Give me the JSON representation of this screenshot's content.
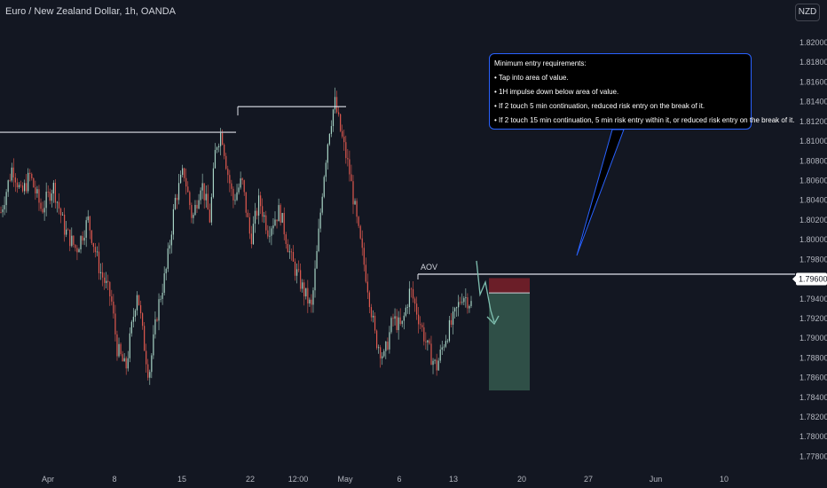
{
  "header": {
    "title": "Euro / New Zealand Dollar, 1h, OANDA",
    "currency": "NZD"
  },
  "chart_data": {
    "type": "candlestick",
    "title": "Euro / New Zealand Dollar, 1h, OANDA",
    "ylim": [
      1.7766,
      1.8218
    ],
    "y_ticks": [
      "1.82000",
      "1.81800",
      "1.81600",
      "1.81400",
      "1.81200",
      "1.81000",
      "1.80800",
      "1.80600",
      "1.80400",
      "1.80200",
      "1.80000",
      "1.79800",
      "1.79600",
      "1.79400",
      "1.79200",
      "1.79000",
      "1.78800",
      "1.78600",
      "1.78400",
      "1.78200",
      "1.78000",
      "1.77800"
    ],
    "x_ticks": [
      "Apr",
      "8",
      "15",
      "22",
      "12:00",
      "May",
      "6",
      "13",
      "20",
      "27",
      "Jun",
      "10"
    ],
    "current_price": "1.79600",
    "price_path": [
      [
        0.0,
        1.8028
      ],
      [
        0.02,
        1.8075
      ],
      [
        0.035,
        1.8045
      ],
      [
        0.05,
        1.8065
      ],
      [
        0.07,
        1.803
      ],
      [
        0.09,
        1.8055
      ],
      [
        0.11,
        1.801
      ],
      [
        0.13,
        1.799
      ],
      [
        0.15,
        1.802
      ],
      [
        0.17,
        1.797
      ],
      [
        0.19,
        1.794
      ],
      [
        0.2,
        1.789
      ],
      [
        0.215,
        1.7868
      ],
      [
        0.225,
        1.791
      ],
      [
        0.235,
        1.795
      ],
      [
        0.245,
        1.79
      ],
      [
        0.255,
        1.7862
      ],
      [
        0.27,
        1.793
      ],
      [
        0.285,
        1.797
      ],
      [
        0.3,
        1.804
      ],
      [
        0.315,
        1.807
      ],
      [
        0.33,
        1.802
      ],
      [
        0.345,
        1.806
      ],
      [
        0.36,
        1.802
      ],
      [
        0.37,
        1.8095
      ],
      [
        0.38,
        1.811
      ],
      [
        0.39,
        1.807
      ],
      [
        0.4,
        1.804
      ],
      [
        0.415,
        1.806
      ],
      [
        0.43,
        1.8
      ],
      [
        0.445,
        1.804
      ],
      [
        0.46,
        1.801
      ],
      [
        0.48,
        1.803
      ],
      [
        0.5,
        1.798
      ],
      [
        0.52,
        1.795
      ],
      [
        0.535,
        1.793
      ],
      [
        0.545,
        1.799
      ],
      [
        0.555,
        1.806
      ],
      [
        0.565,
        1.811
      ],
      [
        0.575,
        1.814
      ],
      [
        0.585,
        1.811
      ],
      [
        0.6,
        1.807
      ],
      [
        0.615,
        1.801
      ],
      [
        0.63,
        1.796
      ],
      [
        0.645,
        1.79
      ],
      [
        0.66,
        1.788
      ],
      [
        0.675,
        1.792
      ],
      [
        0.69,
        1.791
      ],
      [
        0.705,
        1.795
      ],
      [
        0.72,
        1.792
      ],
      [
        0.735,
        1.789
      ],
      [
        0.75,
        1.787
      ],
      [
        0.765,
        1.79
      ],
      [
        0.78,
        1.792
      ],
      [
        0.795,
        1.7945
      ],
      [
        0.81,
        1.7935
      ]
    ],
    "annotations": {
      "levels": [
        {
          "label": "",
          "price": 1.8109
        },
        {
          "label": "",
          "price": 1.8135
        },
        {
          "label": "AOV",
          "price": 1.7965
        }
      ],
      "position_tool": {
        "entry": 1.7946,
        "stop": 1.7961,
        "target": 1.7847
      },
      "callout": {
        "heading": "Minimum entry requirements:",
        "items": [
          "• Tap into area of value.",
          "• 1H impulse down below area of value.",
          "• If 2 touch 5 min continuation, reduced risk entry on the break of it.",
          "• If 2 touch 15 min continuation, 5 min risk entry within it, or reduced risk entry on the break of it."
        ]
      }
    },
    "colors": {
      "background": "#131722",
      "up": "#a8d5c6",
      "down": "#e0594f",
      "stop_zone": "#6b1e28",
      "target_zone": "#2f4f47",
      "callout_border": "#2962ff",
      "arrow": "#7fbfb0"
    }
  }
}
